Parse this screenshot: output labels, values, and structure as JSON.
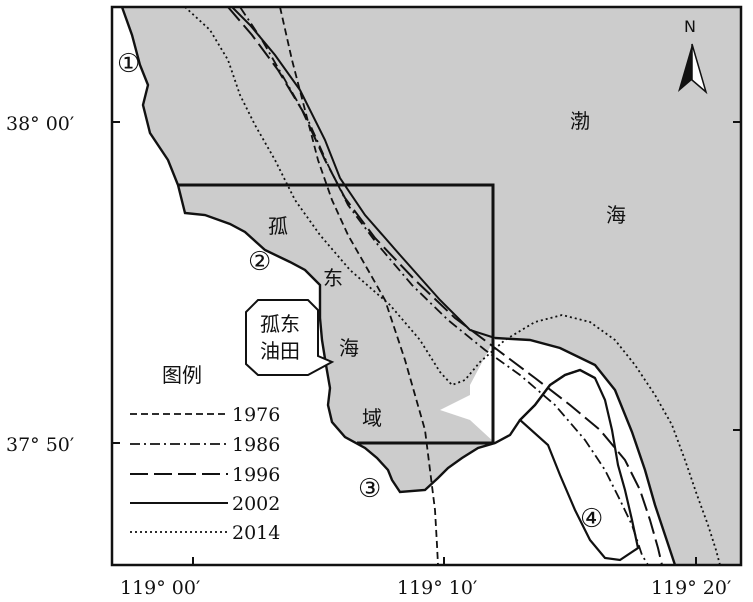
{
  "map": {
    "sea_name": [
      "渤",
      "海"
    ],
    "area_name": [
      "孤",
      "东",
      "海",
      "域"
    ],
    "oilfield_label": [
      "孤东",
      "油田"
    ],
    "north_label": "N",
    "site_markers": [
      "①",
      "②",
      "③",
      "④"
    ],
    "x_ticks": [
      "119° 00′",
      "119° 10′",
      "119° 20′"
    ],
    "y_ticks": [
      "38° 00′",
      "37° 50′"
    ],
    "legend": {
      "title": "图例",
      "items": [
        {
          "year": "1976",
          "style": "dashed"
        },
        {
          "year": "1986",
          "style": "dash-dot"
        },
        {
          "year": "1996",
          "style": "long-dash"
        },
        {
          "year": "2002",
          "style": "solid"
        },
        {
          "year": "2014",
          "style": "dotted"
        }
      ]
    },
    "colors": {
      "sea": "#cccccc",
      "land": "#ffffff",
      "lines": "#111111"
    }
  }
}
